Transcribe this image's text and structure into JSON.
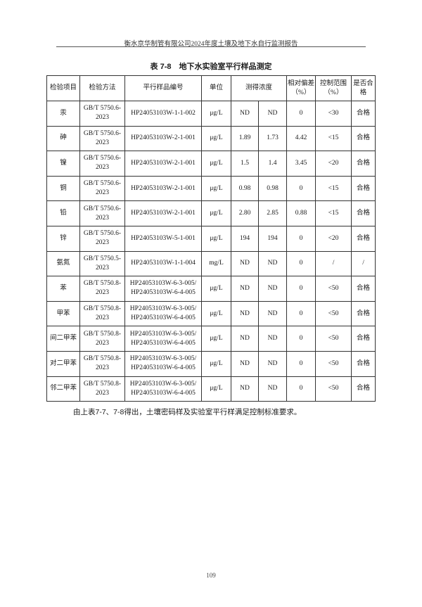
{
  "running_header": "衡水京华制管有限公司2024年度土壤及地下水自行监测报告",
  "caption": "表 7-8　地下水实验室平行样品测定",
  "table": {
    "headers": [
      "检验项目",
      "检验方法",
      "平行样品编号",
      "单位",
      "测得浓度",
      "相对偏差（%）",
      "控制范围（%）",
      "是否合格"
    ],
    "rows": [
      {
        "item": "汞",
        "method": "GB/T 5750.6-2023",
        "sample": "HP24053103W-1-1-002",
        "unit": "μg/L",
        "c1": "ND",
        "c2": "ND",
        "rd": "0",
        "range": "<30",
        "pass": "合格"
      },
      {
        "item": "砷",
        "method": "GB/T 5750.6-2023",
        "sample": "HP24053103W-2-1-001",
        "unit": "μg/L",
        "c1": "1.89",
        "c2": "1.73",
        "rd": "4.42",
        "range": "<15",
        "pass": "合格"
      },
      {
        "item": "镍",
        "method": "GB/T 5750.6-2023",
        "sample": "HP24053103W-2-1-001",
        "unit": "μg/L",
        "c1": "1.5",
        "c2": "1.4",
        "rd": "3.45",
        "range": "<20",
        "pass": "合格"
      },
      {
        "item": "铜",
        "method": "GB/T 5750.6-2023",
        "sample": "HP24053103W-2-1-001",
        "unit": "μg/L",
        "c1": "0.98",
        "c2": "0.98",
        "rd": "0",
        "range": "<15",
        "pass": "合格"
      },
      {
        "item": "铅",
        "method": "GB/T 5750.6-2023",
        "sample": "HP24053103W-2-1-001",
        "unit": "μg/L",
        "c1": "2.80",
        "c2": "2.85",
        "rd": "0.88",
        "range": "<15",
        "pass": "合格"
      },
      {
        "item": "锌",
        "method": "GB/T 5750.6-2023",
        "sample": "HP24053103W-5-1-001",
        "unit": "μg/L",
        "c1": "194",
        "c2": "194",
        "rd": "0",
        "range": "<20",
        "pass": "合格"
      },
      {
        "item": "氨氮",
        "method": "GB/T 5750.5-2023",
        "sample": "HP24053103W-1-1-004",
        "unit": "mg/L",
        "c1": "ND",
        "c2": "ND",
        "rd": "0",
        "range": "/",
        "pass": "/"
      },
      {
        "item": "苯",
        "method": "GB/T 5750.8-2023",
        "sample": "HP24053103W-6-3-005/ HP24053103W-6-4-005",
        "unit": "μg/L",
        "c1": "ND",
        "c2": "ND",
        "rd": "0",
        "range": "<50",
        "pass": "合格"
      },
      {
        "item": "甲苯",
        "method": "GB/T 5750.8-2023",
        "sample": "HP24053103W-6-3-005/ HP24053103W-6-4-005",
        "unit": "μg/L",
        "c1": "ND",
        "c2": "ND",
        "rd": "0",
        "range": "<50",
        "pass": "合格"
      },
      {
        "item": "间二甲苯",
        "method": "GB/T 5750.8-2023",
        "sample": "HP24053103W-6-3-005/ HP24053103W-6-4-005",
        "unit": "μg/L",
        "c1": "ND",
        "c2": "ND",
        "rd": "0",
        "range": "<50",
        "pass": "合格"
      },
      {
        "item": "对二甲苯",
        "method": "GB/T 5750.8-2023",
        "sample": "HP24053103W-6-3-005/ HP24053103W-6-4-005",
        "unit": "μg/L",
        "c1": "ND",
        "c2": "ND",
        "rd": "0",
        "range": "<50",
        "pass": "合格"
      },
      {
        "item": "邻二甲苯",
        "method": "GB/T 5750.8-2023",
        "sample": "HP24053103W-6-3-005/ HP24053103W-6-4-005",
        "unit": "μg/L",
        "c1": "ND",
        "c2": "ND",
        "rd": "0",
        "range": "<50",
        "pass": "合格"
      }
    ]
  },
  "note": "由上表7-7、7-8得出，土壤密码样及实验室平行样满足控制标准要求。",
  "page_number": "109"
}
